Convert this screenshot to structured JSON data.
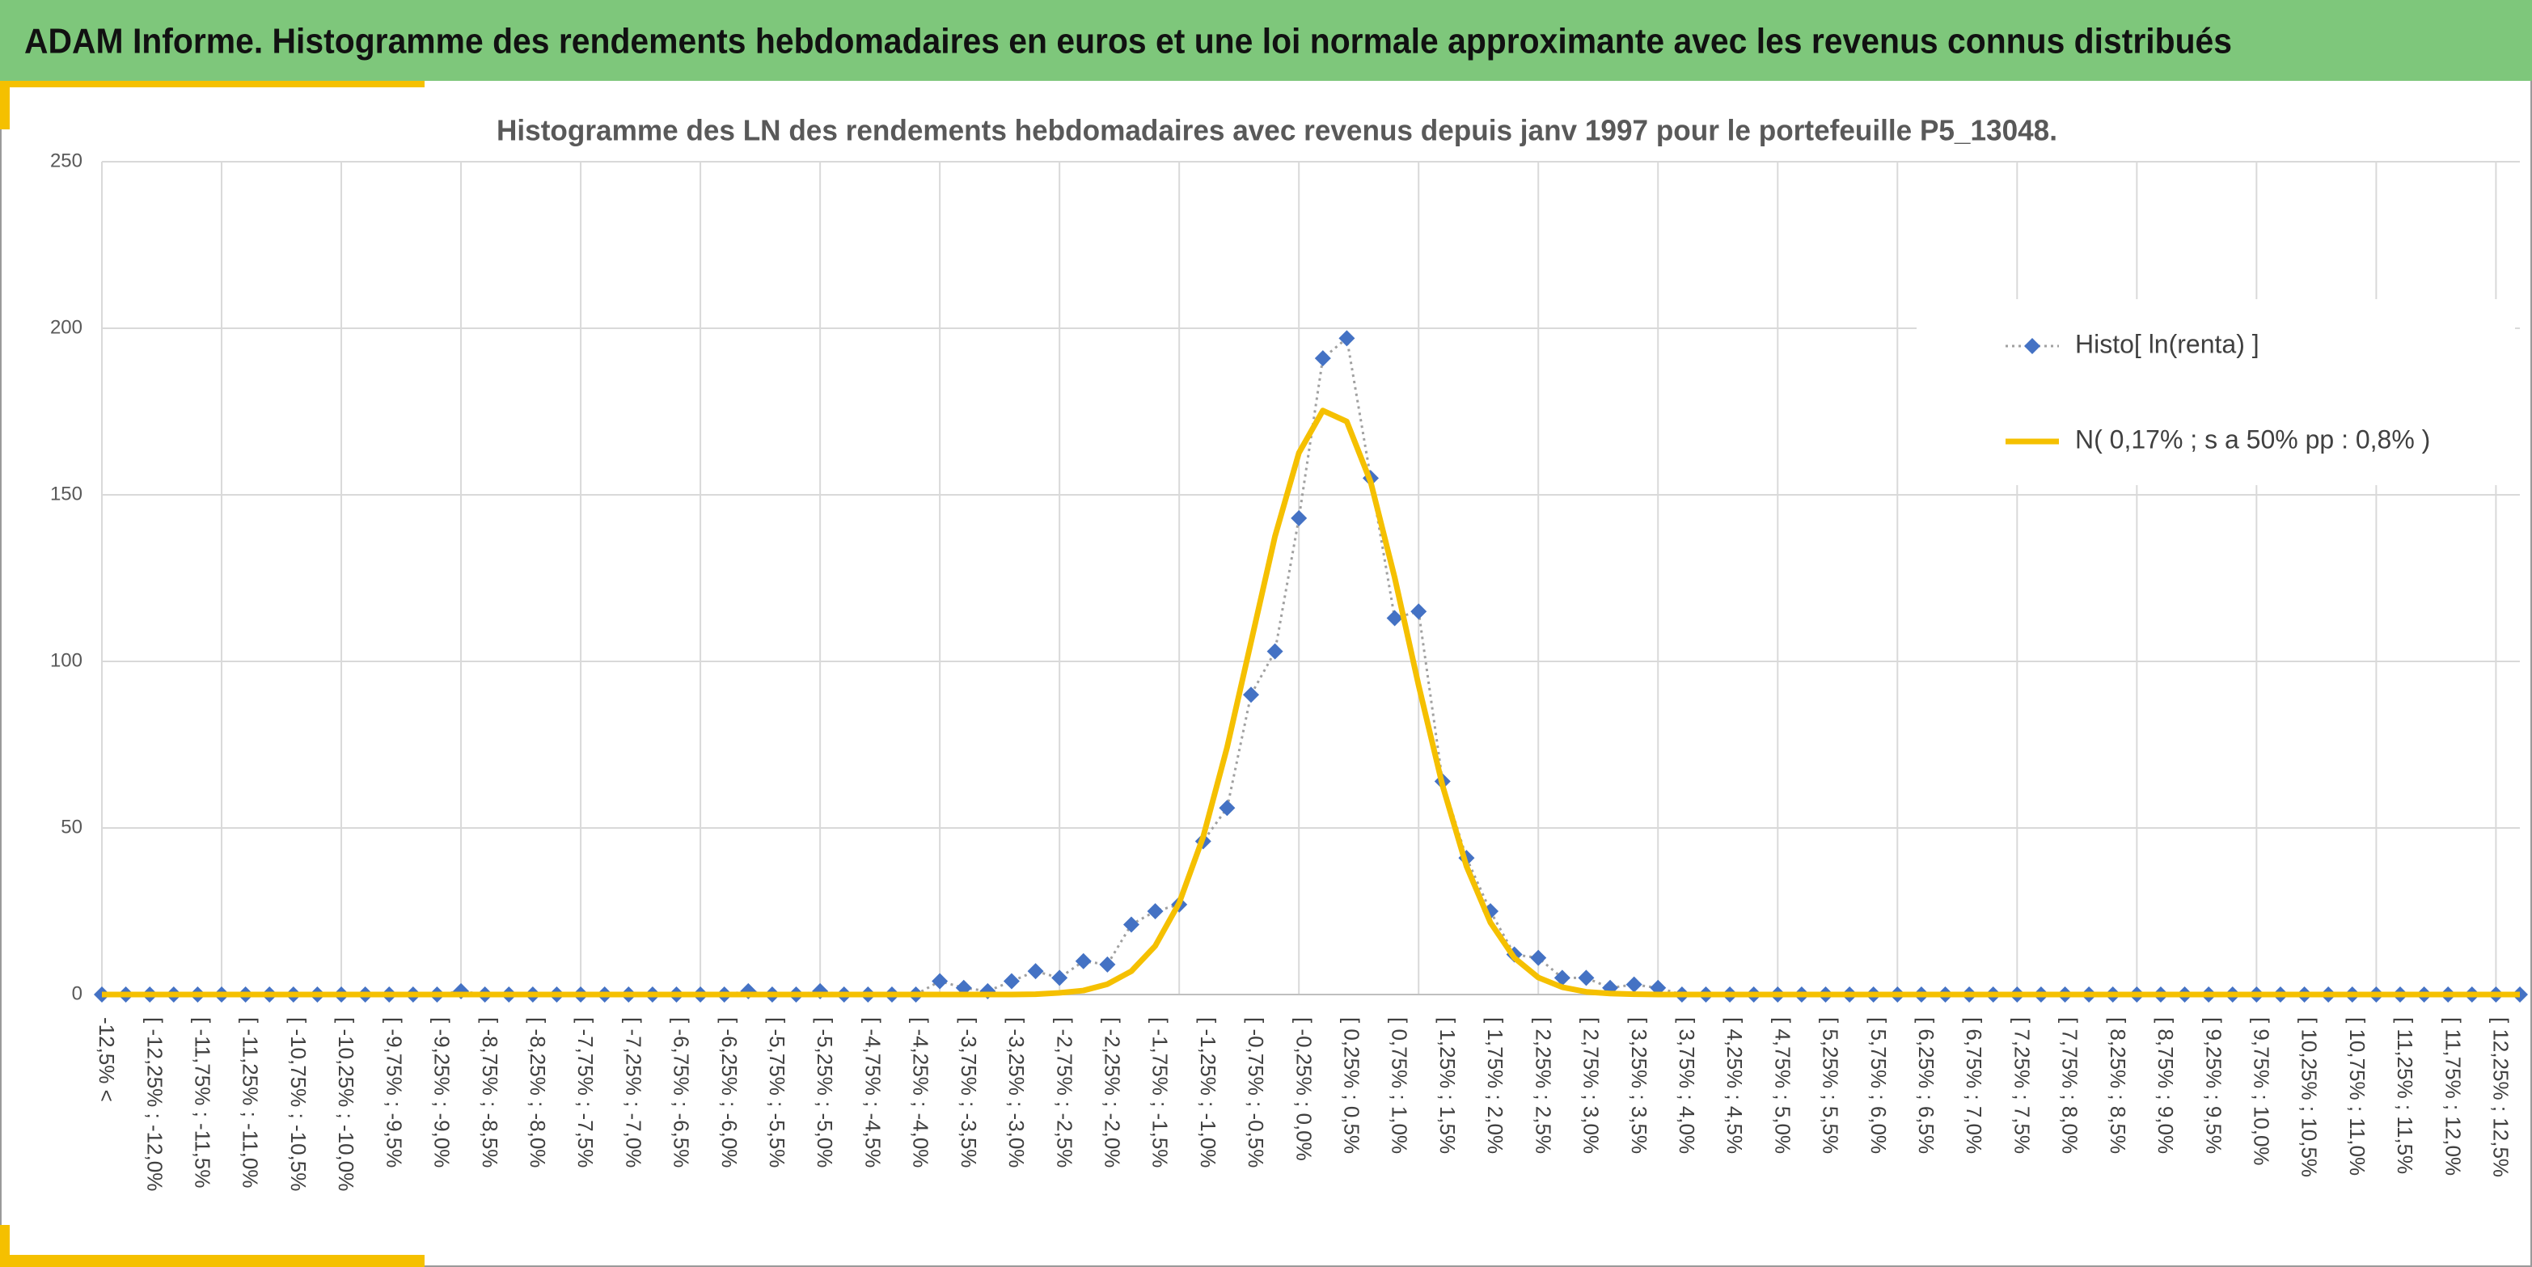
{
  "header": {
    "title": "ADAM Informe. Histogramme des rendements hebdomadaires en euros et une loi normale approximante avec les revenus connus distribués"
  },
  "chart_data": {
    "type": "line",
    "title": "Histogramme des LN des rendements hebdomadaires avec revenus depuis janv 1997 pour le portefeuille P5_13048.",
    "categories": [
      "-12,5% <",
      null,
      "[ -12,25% ; -12,0%",
      null,
      "[ -11,75% ; -11,5%",
      null,
      "[ -11,25% ; -11,0%",
      null,
      "[ -10,75% ; -10,5%",
      null,
      "[ -10,25% ; -10,0%",
      null,
      "[ -9,75% ; -9,5%",
      null,
      "[ -9,25% ; -9,0%",
      null,
      "[ -8,75% ; -8,5%",
      null,
      "[ -8,25% ; -8,0%",
      null,
      "[ -7,75% ; -7,5%",
      null,
      "[ -7,25% ; -7,0%",
      null,
      "[ -6,75% ; -6,5%",
      null,
      "[ -6,25% ; -6,0%",
      null,
      "[ -5,75% ; -5,5%",
      null,
      "[ -5,25% ; -5,0%",
      null,
      "[ -4,75% ; -4,5%",
      null,
      "[ -4,25% ; -4,0%",
      null,
      "[ -3,75% ; -3,5%",
      null,
      "[ -3,25% ; -3,0%",
      null,
      "[ -2,75% ; -2,5%",
      null,
      "[ -2,25% ; -2,0%",
      null,
      "[ -1,75% ; -1,5%",
      null,
      "[ -1,25% ; -1,0%",
      null,
      "[ -0,75% ; -0,5%",
      null,
      "[ -0,25% ; 0,0%",
      null,
      "[ 0,25% ; 0,5%",
      null,
      "[ 0,75% ; 1,0%",
      null,
      "[ 1,25% ; 1,5%",
      null,
      "[ 1,75% ; 2,0%",
      null,
      "[ 2,25% ; 2,5%",
      null,
      "[ 2,75% ; 3,0%",
      null,
      "[ 3,25% ; 3,5%",
      null,
      "[ 3,75% ; 4,0%",
      null,
      "[ 4,25% ; 4,5%",
      null,
      "[ 4,75% ; 5,0%",
      null,
      "[ 5,25% ; 5,5%",
      null,
      "[ 5,75% ; 6,0%",
      null,
      "[ 6,25% ; 6,5%",
      null,
      "[ 6,75% ; 7,0%",
      null,
      "[ 7,25% ; 7,5%",
      null,
      "[ 7,75% ; 8,0%",
      null,
      "[ 8,25% ; 8,5%",
      null,
      "[ 8,75% ; 9,0%",
      null,
      "[ 9,25% ; 9,5%",
      null,
      "[ 9,75% ; 10,0%",
      null,
      "[ 10,25% ; 10,5%",
      null,
      "[ 10,75% ; 11,0%",
      null,
      "[ 11,25% ; 11,5%",
      null,
      "[ 11,75% ; 12,0%",
      null,
      "[ 12,25% ; 12,5%",
      null
    ],
    "series": [
      {
        "name": "Histo[ ln(renta) ]",
        "color": "#4472c4",
        "line_color": "#a0a0a0",
        "marker": "diamond",
        "values": [
          0,
          0,
          0,
          0,
          0,
          0,
          0,
          0,
          0,
          0,
          0,
          0,
          0,
          0,
          0,
          1,
          0,
          0,
          0,
          0,
          0,
          0,
          0,
          0,
          0,
          0,
          0,
          1,
          0,
          0,
          1,
          0,
          0,
          0,
          0,
          4,
          2,
          1,
          4,
          7,
          5,
          10,
          9,
          21,
          25,
          27,
          46,
          56,
          90,
          103,
          143,
          191,
          197,
          155,
          113,
          115,
          64,
          41,
          25,
          12,
          11,
          5,
          5,
          2,
          3,
          2,
          0,
          0,
          0,
          0,
          0,
          0,
          0,
          0,
          0,
          0,
          0,
          0,
          0,
          0,
          0,
          0,
          0,
          0,
          0,
          0,
          0,
          0,
          0,
          0,
          0,
          0,
          0,
          0,
          0,
          0,
          0,
          0,
          0,
          0,
          0,
          0
        ]
      },
      {
        "name": "N( 0,17% ; s a 50% pp : 0,8% )",
        "color": "#f5c000",
        "values": [
          0,
          0,
          0,
          0,
          0,
          0,
          0,
          0,
          0,
          0,
          0,
          0,
          0,
          0,
          0,
          0,
          0,
          0,
          0,
          0,
          0,
          0,
          0,
          0,
          0,
          0,
          0,
          0,
          0,
          0,
          0,
          0,
          0,
          0,
          0,
          0,
          0,
          0,
          0,
          0.1,
          0.5,
          1.2,
          3.1,
          7,
          14.6,
          27.5,
          47.3,
          74.2,
          105.8,
          137.5,
          162.6,
          175.3,
          172,
          153.8,
          125.2,
          92.8,
          62.7,
          38.5,
          21.6,
          11,
          5.1,
          2.2,
          0.8,
          0.3,
          0.1,
          0,
          0,
          0,
          0,
          0,
          0,
          0,
          0,
          0,
          0,
          0,
          0,
          0,
          0,
          0,
          0,
          0,
          0,
          0,
          0,
          0,
          0,
          0,
          0,
          0,
          0,
          0,
          0,
          0,
          0,
          0,
          0,
          0,
          0,
          0,
          0,
          0
        ]
      }
    ],
    "ylim": [
      0,
      250
    ],
    "yticks": [
      0,
      50,
      100,
      150,
      200,
      250
    ],
    "grid": true,
    "legend": "upper right"
  }
}
